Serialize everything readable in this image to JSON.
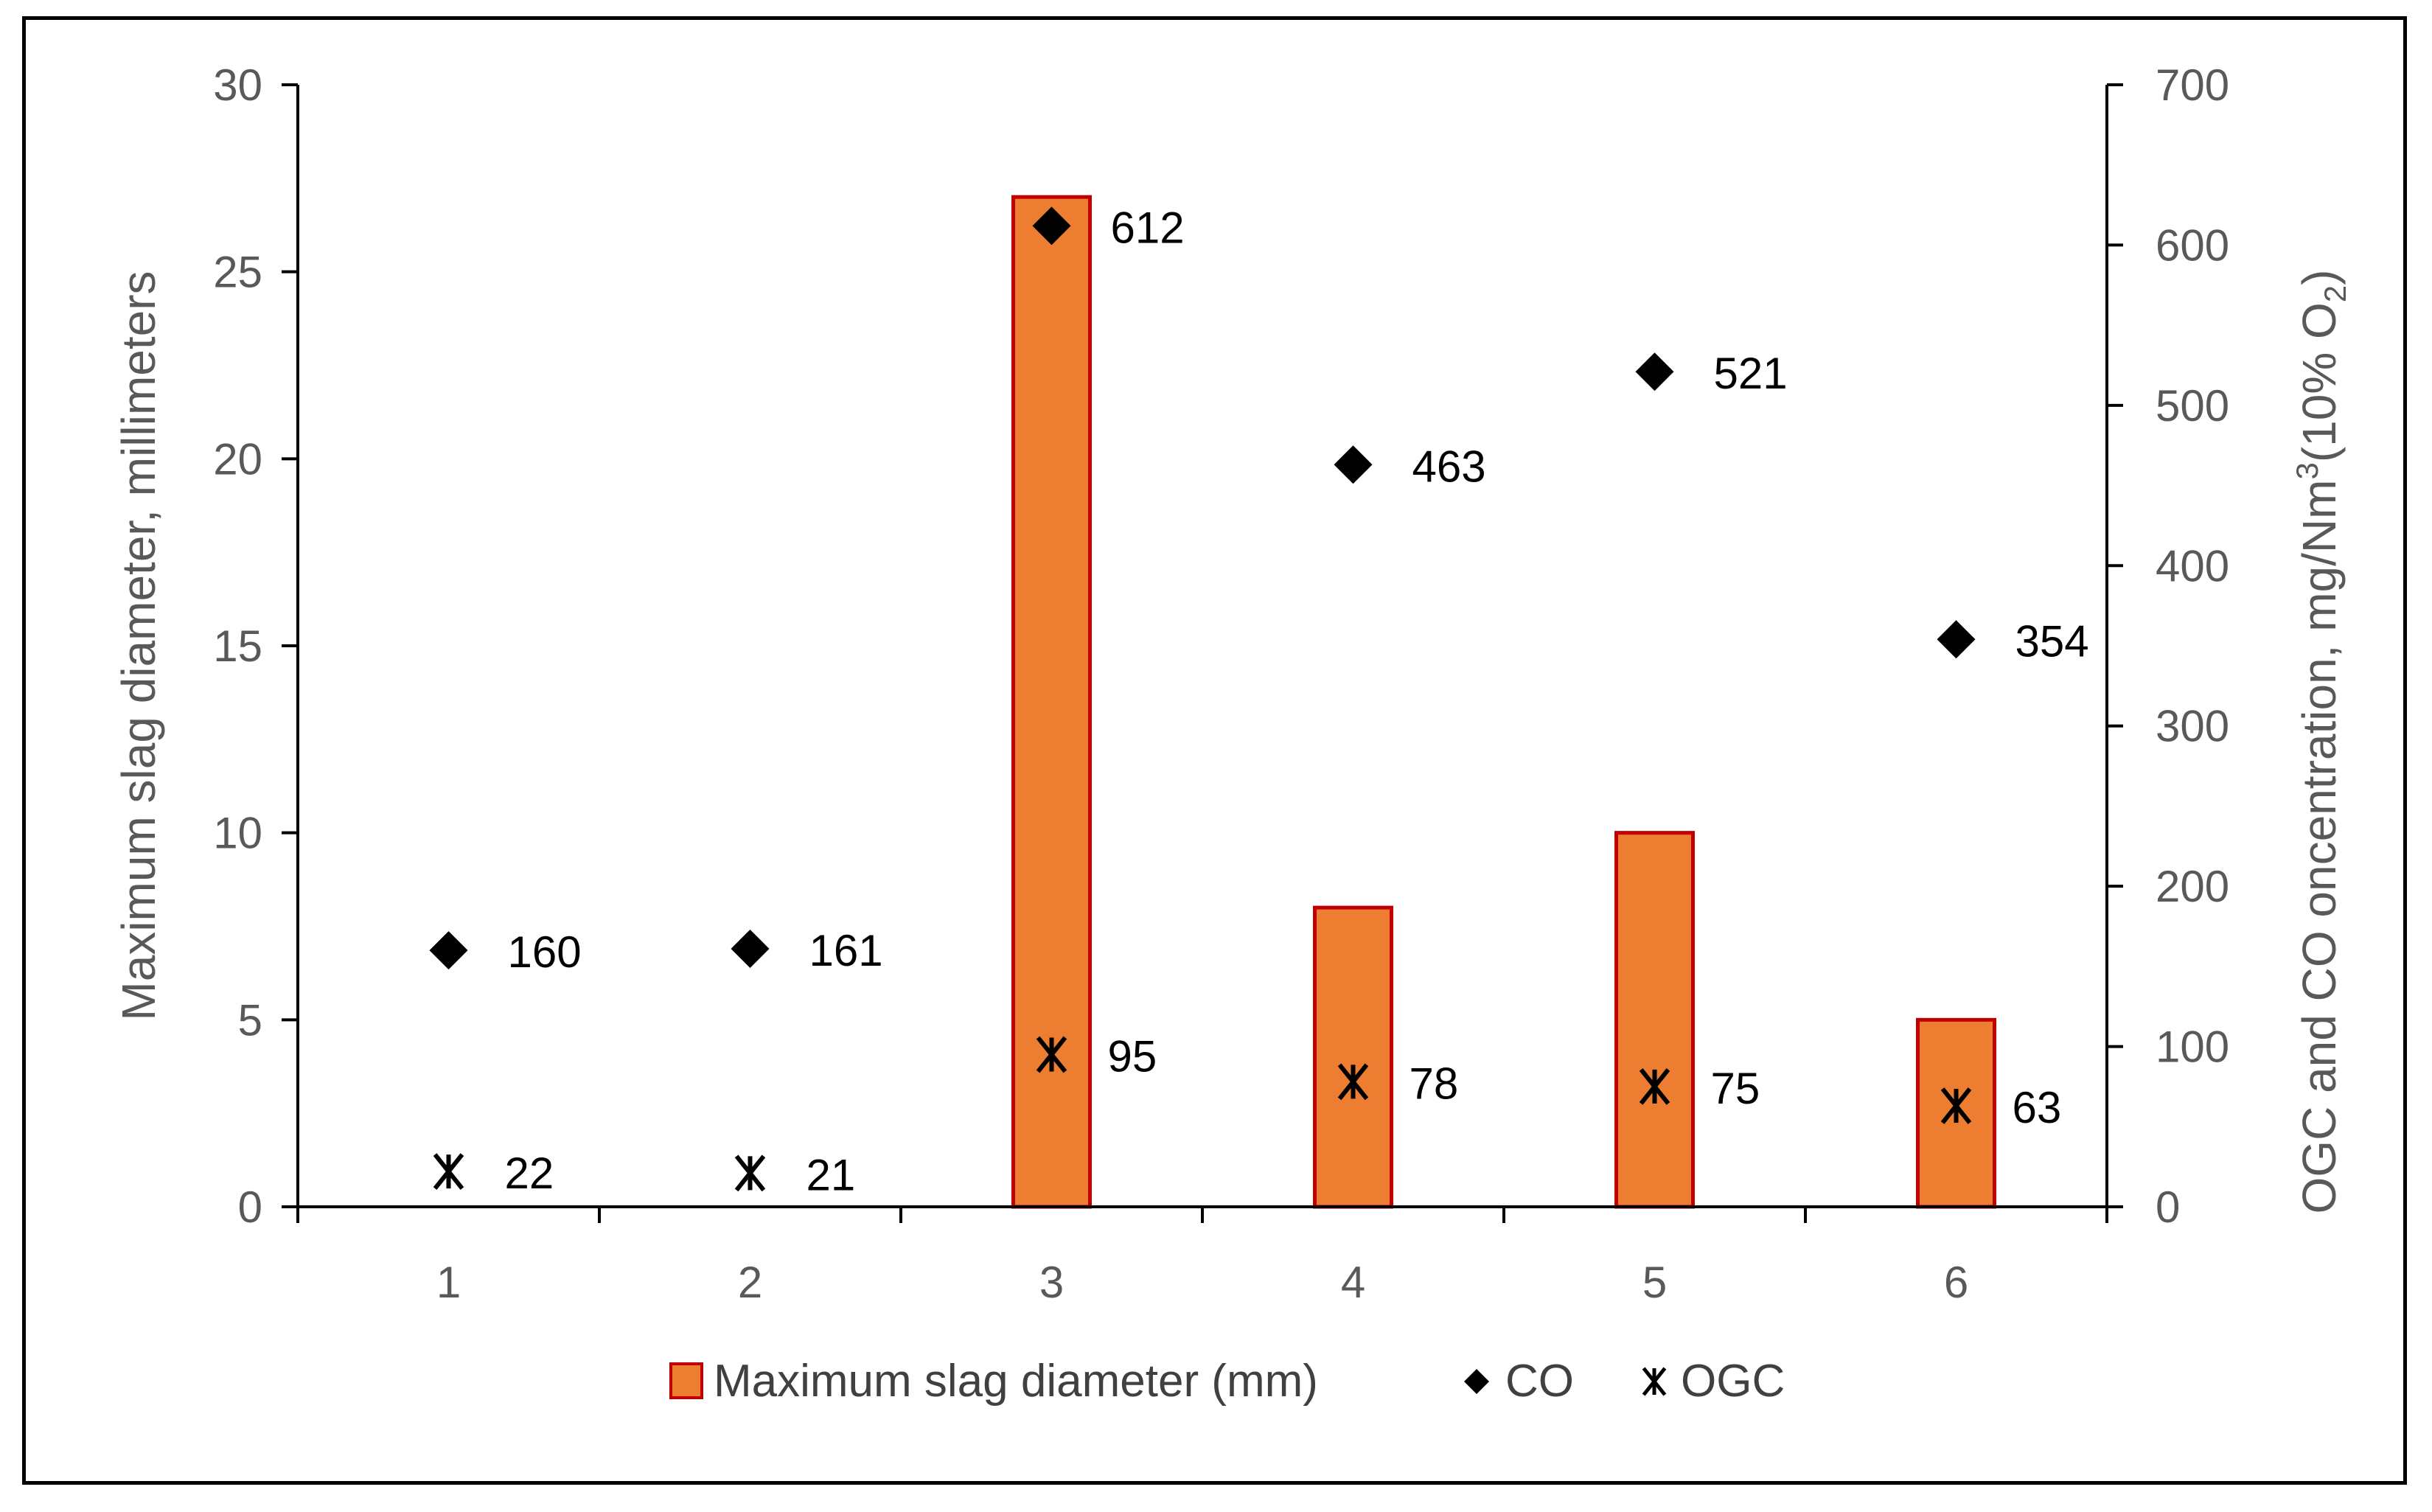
{
  "chart_data": {
    "type": "bar",
    "categories": [
      "1",
      "2",
      "3",
      "4",
      "5",
      "6"
    ],
    "series": [
      {
        "name": "Maximum slag diameter (mm)",
        "type": "bar",
        "axis": "left",
        "values": [
          0,
          0,
          27,
          8,
          10,
          5
        ]
      },
      {
        "name": "CO",
        "type": "scatter",
        "axis": "right",
        "marker": "diamond",
        "values": [
          160,
          161,
          612,
          463,
          521,
          354
        ]
      },
      {
        "name": "OGC",
        "type": "scatter",
        "axis": "right",
        "marker": "asterisk",
        "values": [
          22,
          21,
          95,
          78,
          75,
          63
        ]
      }
    ],
    "ylabel": "Maximum slag diameter, millimeters",
    "y2label": {
      "prefix": "OGC and CO oncentration, mg/Nm",
      "sup": "3",
      "mid": "(10% O",
      "sub": "2",
      "suffix": ")"
    },
    "ylim": [
      0,
      30
    ],
    "y2lim": [
      0,
      700
    ],
    "yticks": [
      "0",
      "5",
      "10",
      "15",
      "20",
      "25",
      "30"
    ],
    "y2ticks": [
      "0",
      "100",
      "200",
      "300",
      "400",
      "500",
      "600",
      "700"
    ],
    "legend_position": "bottom",
    "grid": false,
    "colors": {
      "bar_fill": "#ED7D31",
      "bar_stroke": "#C00000",
      "marker": "#000000",
      "axis": "#000000",
      "text": "#595959"
    }
  }
}
